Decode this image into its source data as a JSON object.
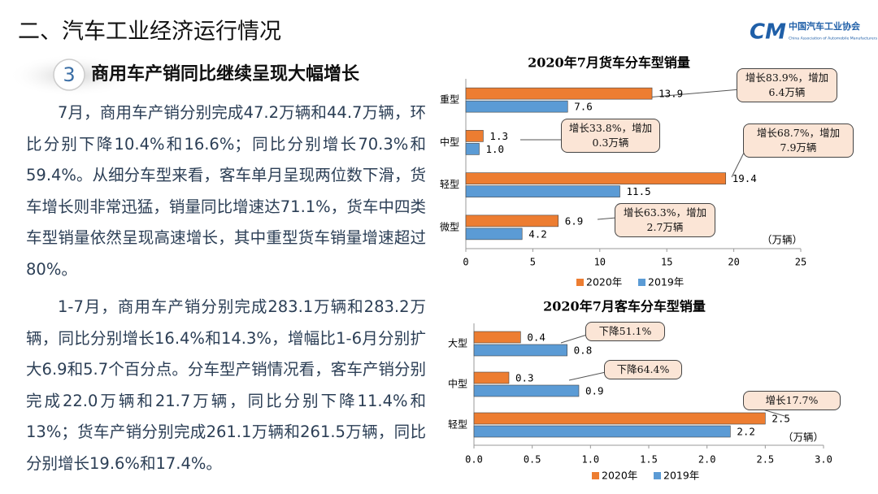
{
  "header": {
    "title": "二、汽车工业经济运行情况",
    "logo_mark": "CM",
    "logo_cn": "中国汽车工业协会",
    "logo_en": "China Association of Automobile Manufacturers"
  },
  "section": {
    "number": "3",
    "title": "商用车产销同比继续呈现大幅增长"
  },
  "paragraphs": [
    "7月，商用车产销分别完成47.2万辆和44.7万辆，环比分别下降10.4%和16.6%；同比分别增长70.3%和59.4%。从细分车型来看，客车单月呈现两位数下滑，货车增长则非常迅猛，销量同比增速达71.1%，货车中四类车型销量依然呈现高速增长，其中重型货车销量增速超过80%。",
    "1-7月，商用车产销分别完成283.1万辆和283.2万辆，同比分别增长16.4%和14.3%，增幅比1-6月分别扩大6.9和5.7个百分点。分车型产销情况看，客车产销分别完成22.0万辆和21.7万辆，同比分别下降11.4%和13%；货车产销分别完成261.1万辆和261.5万辆，同比分别增长19.6%和17.4%。"
  ],
  "chart_data": [
    {
      "type": "hbar",
      "title": "2020年7月货车分车型销量",
      "unit": "（万辆）",
      "categories": [
        "重型",
        "中型",
        "轻型",
        "微型"
      ],
      "series": [
        {
          "name": "2020年",
          "color": "#ed7d31",
          "values": [
            13.9,
            1.3,
            19.4,
            6.9
          ]
        },
        {
          "name": "2019年",
          "color": "#5b9bd5",
          "values": [
            7.6,
            1.0,
            11.5,
            4.2
          ],
          "value_labels": [
            "7.6",
            "1.0",
            "11.5",
            "4.2"
          ]
        }
      ],
      "xlim": [
        0,
        25
      ],
      "xticks": [
        0,
        5,
        10,
        15,
        20,
        25
      ],
      "legend": "bottom",
      "annotations": [
        "增长83.9%，增加6.4万辆",
        "增长33.8%，增加0.3万辆",
        "增长68.7%，增加7.9万辆",
        "增长63.3%，增加2.7万辆"
      ]
    },
    {
      "type": "hbar",
      "title": "2020年7月客车分车型销量",
      "unit": "（万辆）",
      "categories": [
        "大型",
        "中型",
        "轻型"
      ],
      "series": [
        {
          "name": "2020年",
          "color": "#ed7d31",
          "values": [
            0.4,
            0.3,
            2.5
          ]
        },
        {
          "name": "2019年",
          "color": "#5b9bd5",
          "values": [
            0.8,
            0.9,
            2.2
          ]
        }
      ],
      "xlim": [
        0,
        3
      ],
      "xticks": [
        {
          "value": 0,
          "label": "0.0"
        },
        0.5,
        {
          "value": 1,
          "label": "1.0"
        },
        1.5,
        {
          "value": 2,
          "label": "2.0"
        },
        2.5,
        {
          "value": 3,
          "label": "3.0"
        }
      ],
      "legend": "bottom",
      "annotations": [
        "下降51.1%",
        "下降64.4%",
        "增长17.7%"
      ]
    }
  ]
}
